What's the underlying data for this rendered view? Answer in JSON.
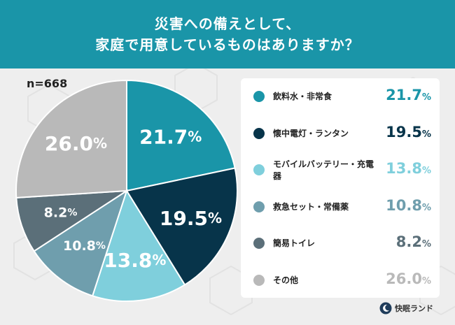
{
  "header": {
    "line1": "災害への備えとして、",
    "line2": "家庭で用意しているものはありますか？"
  },
  "sample_label": "n=668",
  "brand": "快眠ランド",
  "colors": {
    "header": "#1a95a8",
    "background": "#eeeeee"
  },
  "chart_data": {
    "type": "pie",
    "title": "災害への備えとして、家庭で用意しているものはありますか？",
    "n": "n=668",
    "unit": "%",
    "slices": [
      {
        "label": "飲料水・非常食",
        "value": 21.7,
        "display": "21.7",
        "color": "#1a95a8"
      },
      {
        "label": "懐中電灯・ランタン",
        "value": 19.5,
        "display": "19.5",
        "color": "#07344a"
      },
      {
        "label": "モバイルバッテリー・充電器",
        "value": 13.8,
        "display": "13.8",
        "color": "#7fcfdc"
      },
      {
        "label": "救急セット・常備薬",
        "value": 10.8,
        "display": "10.8",
        "color": "#6f9ead"
      },
      {
        "label": "簡易トイレ",
        "value": 8.2,
        "display": "8.2",
        "color": "#5b6f79"
      },
      {
        "label": "その他",
        "value": 26.0,
        "display": "26.0",
        "color": "#b9b9b9"
      }
    ],
    "legend_position": "right"
  }
}
